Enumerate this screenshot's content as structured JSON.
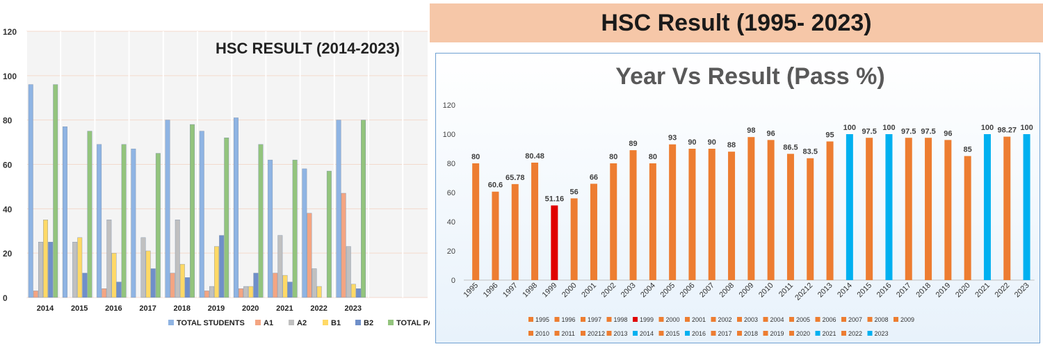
{
  "chart_data": [
    {
      "type": "bar",
      "title": "HSC RESULT (2014-2023)",
      "categories": [
        "2014",
        "2015",
        "2016",
        "2017",
        "2018",
        "2019",
        "2020",
        "2021",
        "2022",
        "2023"
      ],
      "ylim": [
        0,
        120
      ],
      "yticks": [
        0,
        20,
        40,
        60,
        80,
        100,
        120
      ],
      "legend_position": "bottom",
      "series": [
        {
          "name": "TOTAL STUDENTS",
          "color": "#8fb4e3",
          "values": [
            96,
            77,
            69,
            67,
            80,
            75,
            81,
            62,
            58,
            80
          ]
        },
        {
          "name": "A1",
          "color": "#f4a582",
          "values": [
            3,
            0,
            4,
            0,
            11,
            3,
            4,
            11,
            38,
            47
          ]
        },
        {
          "name": "A2",
          "color": "#c0c0c0",
          "values": [
            25,
            25,
            35,
            27,
            35,
            5,
            5,
            28,
            13,
            23
          ]
        },
        {
          "name": "B1",
          "color": "#ffd966",
          "values": [
            35,
            27,
            20,
            21,
            15,
            23,
            5,
            10,
            5,
            6
          ]
        },
        {
          "name": "B2",
          "color": "#6f8fc9",
          "values": [
            25,
            11,
            7,
            13,
            9,
            28,
            11,
            7,
            0,
            4
          ]
        },
        {
          "name": "TOTAL PASS",
          "color": "#93c47d",
          "values": [
            96,
            75,
            69,
            65,
            78,
            72,
            69,
            62,
            57,
            80
          ]
        }
      ],
      "legend_labels": [
        "TOTAL STUDENTS",
        "A1",
        "A2",
        "B1",
        "B2",
        "TOTAL PAS"
      ]
    },
    {
      "type": "bar",
      "banner": "HSC Result (1995- 2023)",
      "title": "Year Vs  Result (Pass %)",
      "categories": [
        "1995",
        "1996",
        "1997",
        "1998",
        "1999",
        "2000",
        "2001",
        "2002",
        "2003",
        "2004",
        "2005",
        "2006",
        "2007",
        "2008",
        "2009",
        "2010",
        "2011",
        "20212",
        "2013",
        "2014",
        "2015",
        "2016",
        "2017",
        "2018",
        "2019",
        "2020",
        "2021",
        "2022",
        "2023"
      ],
      "values": [
        80,
        60.6,
        65.78,
        80.48,
        51.16,
        56,
        66,
        80,
        89,
        80,
        93,
        90,
        90,
        88,
        98,
        96,
        86.5,
        83.5,
        95,
        100,
        97.5,
        100,
        97.5,
        97.5,
        96,
        85,
        100,
        98.27,
        100
      ],
      "labels": [
        "80",
        "60.6",
        "65.78",
        "80.48",
        "51.16",
        "56",
        "66",
        "80",
        "89",
        "80",
        "93",
        "90",
        "90",
        "88",
        "98",
        "96",
        "86.5",
        "83.5",
        "95",
        "100",
        "97.5",
        "100",
        "97.5",
        "97.5",
        "96",
        "85",
        "100",
        "98.27",
        "100"
      ],
      "colors": [
        "#ed7d31",
        "#ed7d31",
        "#ed7d31",
        "#ed7d31",
        "#e00000",
        "#ed7d31",
        "#ed7d31",
        "#ed7d31",
        "#ed7d31",
        "#ed7d31",
        "#ed7d31",
        "#ed7d31",
        "#ed7d31",
        "#ed7d31",
        "#ed7d31",
        "#ed7d31",
        "#ed7d31",
        "#ed7d31",
        "#ed7d31",
        "#00b0f0",
        "#ed7d31",
        "#00b0f0",
        "#ed7d31",
        "#ed7d31",
        "#ed7d31",
        "#ed7d31",
        "#00b0f0",
        "#ed7d31",
        "#00b0f0"
      ],
      "ylim": [
        0,
        120
      ],
      "yticks": [
        0,
        20,
        40,
        60,
        80,
        100,
        120
      ],
      "legend_position": "bottom"
    }
  ]
}
